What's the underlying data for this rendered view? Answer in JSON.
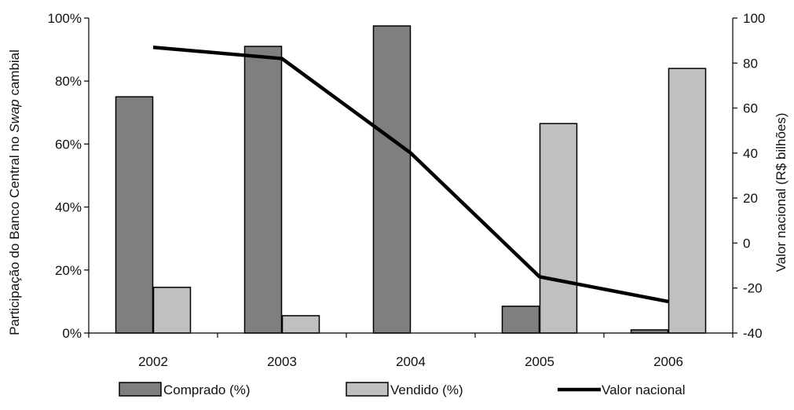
{
  "chart_data": {
    "type": "bar",
    "categories": [
      "2002",
      "2003",
      "2004",
      "2005",
      "2006"
    ],
    "series": [
      {
        "name": "Comprado (%)",
        "type": "bar",
        "axis": "left",
        "color": "#7f7f7f",
        "values": [
          75,
          91,
          97.5,
          8.5,
          1
        ]
      },
      {
        "name": "Vendido (%)",
        "type": "bar",
        "axis": "left",
        "color": "#c0c0c0",
        "values": [
          14.5,
          5.5,
          0,
          66.5,
          84
        ]
      },
      {
        "name": "Valor nacional",
        "type": "line",
        "axis": "right",
        "color": "#000000",
        "values": [
          87,
          82,
          40,
          -15,
          -26
        ]
      }
    ],
    "ylabel_left": {
      "pre": "Participação do Banco Central no ",
      "italic": "Swap",
      "post": " cambial"
    },
    "ylabel_right": "Valor nacional (R$ bilhões)",
    "ylim_left": [
      0,
      100
    ],
    "ylim_right": [
      -40,
      100
    ],
    "yticks_left": [
      "0%",
      "20%",
      "40%",
      "60%",
      "80%",
      "100%"
    ],
    "yticks_right": [
      "-40",
      "-20",
      "0",
      "20",
      "40",
      "60",
      "80",
      "100"
    ],
    "legend_position": "bottom",
    "grid": false
  }
}
